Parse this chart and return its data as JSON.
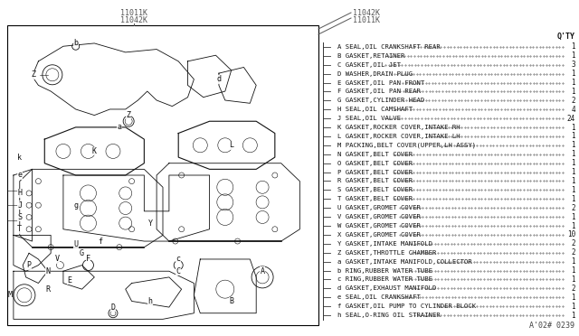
{
  "bg_color": "#ffffff",
  "diagram_bg": "#ffffff",
  "border_color": "#000000",
  "text_color": "#000000",
  "label_top_left": [
    "11011K",
    "11042K"
  ],
  "label_top_right": [
    "11042K",
    "11011K"
  ],
  "parts_list": [
    [
      "A",
      "SEAL,OIL CRANKSHAFT REAR",
      "1"
    ],
    [
      "B",
      "GASKET,RETAINER",
      "1"
    ],
    [
      "C",
      "GASKET,OIL JET",
      "3"
    ],
    [
      "D",
      "WASHER,DRAIN PLUG",
      "1"
    ],
    [
      "E",
      "GASKET,OIL PAN FRONT",
      "1"
    ],
    [
      "F",
      "GASKET,OIL PAN REAR",
      "1"
    ],
    [
      "G",
      "GASKET,CYLINDER HEAD",
      "2"
    ],
    [
      "H",
      "SEAL,OIL CAMSHAFT",
      "4"
    ],
    [
      "J",
      "SEAL,OIL VALVE",
      "24"
    ],
    [
      "K",
      "GASKET,ROCKER COVER,INTAKE RH",
      "1"
    ],
    [
      "L",
      "GASKET,ROCKER COVER,INTAKE LH",
      "1"
    ],
    [
      "M",
      "PACKING,BELT COVER(UPPER,LH ASSY)",
      "1"
    ],
    [
      "N",
      "GASKET,BELT COVER",
      "1"
    ],
    [
      "O",
      "GASKET,BELT COVER",
      "1"
    ],
    [
      "P",
      "GASKET,BELT COVER",
      "1"
    ],
    [
      "R",
      "GASKET,BELT COVER",
      "1"
    ],
    [
      "S",
      "GASKET,BELT COVER",
      "1"
    ],
    [
      "T",
      "GASKET,BELT COVER",
      "1"
    ],
    [
      "U",
      "GASKET,GROMET COVER",
      "2"
    ],
    [
      "V",
      "GASKET,GROMET COVER",
      "1"
    ],
    [
      "W",
      "GASKET,GROMET COVER",
      "1"
    ],
    [
      "X",
      "GASKET,GROMET COVER",
      "10"
    ],
    [
      "Y",
      "GASKET,INTAKE MANIFOLD",
      "2"
    ],
    [
      "Z",
      "GASKET,THROTTLE CHAMBER",
      "2"
    ],
    [
      "a",
      "GASKET,INTAKE MANIFOLD,COLLECTOR",
      "1"
    ],
    [
      "b",
      "RING,RUBBER WATER TUBE",
      "1"
    ],
    [
      "c",
      "RING,RUBBER WATER TUBE",
      "1"
    ],
    [
      "d",
      "GASKET,EXHAUST MANIFOLD",
      "2"
    ],
    [
      "e",
      "SEAL,OIL CRANKSHAFT",
      "1"
    ],
    [
      "f",
      "GASKET,OIL PUMP TO CYLINDER BLOCK",
      "1"
    ],
    [
      "h",
      "SEAL,O-RING OIL STRAINER",
      "1"
    ]
  ],
  "footnote": "A'02# 0239",
  "header_qty": "Q'TY"
}
